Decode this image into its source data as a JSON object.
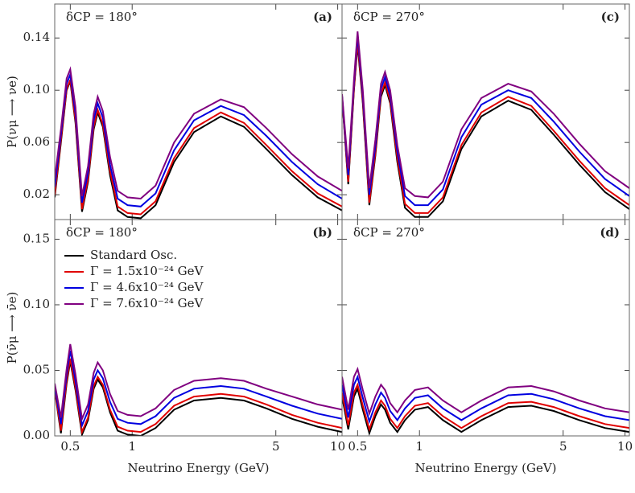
{
  "chart_data": [
    {
      "type": "line",
      "panel_label": "(a)",
      "annotation": "δCP = 180°",
      "y_label": "P(νμ ⟶ νe)",
      "xscale": "log",
      "xlim": [
        0.42,
        10.5
      ],
      "ylim": [
        0.001,
        0.166
      ],
      "xticks": [
        0.5,
        1,
        5,
        10
      ],
      "yticks": [
        0.02,
        0.06,
        {
          "value": 0.1,
          "label": "0.10"
        },
        0.14
      ],
      "x": [
        0.42,
        0.45,
        0.48,
        0.5,
        0.53,
        0.57,
        0.61,
        0.65,
        0.68,
        0.72,
        0.78,
        0.85,
        0.95,
        1.1,
        1.3,
        1.6,
        2.0,
        2.7,
        3.5,
        4.5,
        6,
        8,
        10.5
      ],
      "series": [
        {
          "color": "#000000",
          "values": [
            0.018,
            0.06,
            0.1,
            0.107,
            0.075,
            0.007,
            0.03,
            0.07,
            0.083,
            0.072,
            0.035,
            0.008,
            0.003,
            0.002,
            0.012,
            0.045,
            0.068,
            0.08,
            0.072,
            0.055,
            0.035,
            0.018,
            0.008
          ]
        },
        {
          "color": "#e00000",
          "values": [
            0.02,
            0.062,
            0.101,
            0.108,
            0.077,
            0.009,
            0.032,
            0.072,
            0.085,
            0.074,
            0.038,
            0.011,
            0.006,
            0.005,
            0.015,
            0.048,
            0.071,
            0.083,
            0.075,
            0.058,
            0.038,
            0.021,
            0.011
          ]
        },
        {
          "color": "#0000e0",
          "values": [
            0.026,
            0.066,
            0.105,
            0.112,
            0.082,
            0.014,
            0.037,
            0.077,
            0.09,
            0.079,
            0.043,
            0.017,
            0.012,
            0.011,
            0.021,
            0.054,
            0.077,
            0.088,
            0.081,
            0.065,
            0.045,
            0.028,
            0.017
          ]
        },
        {
          "color": "#800080",
          "values": [
            0.032,
            0.07,
            0.109,
            0.116,
            0.087,
            0.019,
            0.042,
            0.082,
            0.095,
            0.084,
            0.049,
            0.023,
            0.018,
            0.017,
            0.027,
            0.06,
            0.082,
            0.093,
            0.087,
            0.071,
            0.051,
            0.034,
            0.023
          ]
        }
      ]
    },
    {
      "type": "line",
      "panel_label": "(b)",
      "annotation": "δCP = 180°",
      "y_label": "P(ν̄μ ⟶ ν̄e)",
      "x_label": "Neutrino Energy (GeV)",
      "legend": "upper left",
      "xscale": "log",
      "xlim": [
        0.42,
        10.5
      ],
      "ylim": [
        0,
        0.165
      ],
      "xticks": [
        0.5,
        1,
        5,
        10
      ],
      "yticks": [
        {
          "value": 0,
          "label": "0.00"
        },
        0.05,
        {
          "value": 0.1,
          "label": "0.10"
        },
        0.15
      ],
      "x": [
        0.42,
        0.45,
        0.48,
        0.5,
        0.53,
        0.57,
        0.61,
        0.65,
        0.68,
        0.72,
        0.78,
        0.85,
        0.95,
        1.1,
        1.3,
        1.6,
        2.0,
        2.7,
        3.5,
        4.5,
        6,
        8,
        10.5
      ],
      "series": [
        {
          "name": "Standard Osc.",
          "color": "#000000",
          "values": [
            0.035,
            0.002,
            0.04,
            0.057,
            0.035,
            0.001,
            0.012,
            0.036,
            0.043,
            0.037,
            0.018,
            0.004,
            0.001,
            0.0,
            0.006,
            0.02,
            0.027,
            0.029,
            0.027,
            0.021,
            0.013,
            0.007,
            0.003
          ]
        },
        {
          "name": "Γ = 1.5x10⁻²⁴ GeV",
          "color": "#e00000",
          "values": [
            0.036,
            0.004,
            0.042,
            0.059,
            0.037,
            0.003,
            0.014,
            0.038,
            0.045,
            0.039,
            0.02,
            0.007,
            0.004,
            0.003,
            0.009,
            0.023,
            0.03,
            0.032,
            0.03,
            0.024,
            0.016,
            0.01,
            0.006
          ]
        },
        {
          "name": "Γ = 4.6x10⁻²⁴ GeV",
          "color": "#0000e0",
          "values": [
            0.038,
            0.009,
            0.047,
            0.065,
            0.042,
            0.008,
            0.019,
            0.043,
            0.05,
            0.044,
            0.026,
            0.013,
            0.01,
            0.009,
            0.015,
            0.029,
            0.036,
            0.038,
            0.036,
            0.03,
            0.023,
            0.017,
            0.013
          ]
        },
        {
          "name": "Γ = 7.6x10⁻²⁴ GeV",
          "color": "#800080",
          "values": [
            0.04,
            0.014,
            0.051,
            0.07,
            0.047,
            0.013,
            0.024,
            0.048,
            0.056,
            0.05,
            0.032,
            0.019,
            0.016,
            0.015,
            0.021,
            0.035,
            0.042,
            0.044,
            0.042,
            0.036,
            0.03,
            0.024,
            0.02
          ]
        }
      ]
    },
    {
      "type": "line",
      "panel_label": "(c)",
      "annotation": "δCP = 270°",
      "xscale": "log",
      "xlim": [
        0.42,
        10.5
      ],
      "ylim": [
        0.001,
        0.166
      ],
      "xticks": [
        0.5,
        1,
        5,
        10
      ],
      "yticks": [
        0.02,
        0.06,
        0.1,
        0.14
      ],
      "x": [
        0.42,
        0.45,
        0.48,
        0.5,
        0.53,
        0.57,
        0.61,
        0.65,
        0.68,
        0.72,
        0.78,
        0.85,
        0.95,
        1.1,
        1.3,
        1.6,
        2.0,
        2.7,
        3.5,
        4.5,
        6,
        8,
        10.5
      ],
      "series": [
        {
          "color": "#000000",
          "values": [
            0.095,
            0.028,
            0.1,
            0.135,
            0.09,
            0.012,
            0.05,
            0.095,
            0.104,
            0.09,
            0.045,
            0.01,
            0.003,
            0.003,
            0.015,
            0.055,
            0.08,
            0.092,
            0.085,
            0.066,
            0.043,
            0.022,
            0.009
          ]
        },
        {
          "color": "#e00000",
          "values": [
            0.095,
            0.03,
            0.101,
            0.137,
            0.092,
            0.014,
            0.052,
            0.097,
            0.106,
            0.092,
            0.048,
            0.013,
            0.006,
            0.006,
            0.018,
            0.058,
            0.083,
            0.095,
            0.088,
            0.069,
            0.046,
            0.025,
            0.012
          ]
        },
        {
          "color": "#0000e0",
          "values": [
            0.096,
            0.035,
            0.105,
            0.142,
            0.096,
            0.02,
            0.057,
            0.101,
            0.11,
            0.096,
            0.053,
            0.019,
            0.012,
            0.012,
            0.024,
            0.064,
            0.089,
            0.1,
            0.094,
            0.076,
            0.053,
            0.032,
            0.019
          ]
        },
        {
          "color": "#800080",
          "values": [
            0.097,
            0.04,
            0.108,
            0.145,
            0.1,
            0.025,
            0.062,
            0.105,
            0.114,
            0.1,
            0.058,
            0.025,
            0.019,
            0.018,
            0.03,
            0.07,
            0.094,
            0.105,
            0.099,
            0.082,
            0.059,
            0.038,
            0.025
          ]
        }
      ]
    },
    {
      "type": "line",
      "panel_label": "(d)",
      "annotation": "δCP = 270°",
      "x_label": "Neutrino Energy (GeV)",
      "xscale": "log",
      "xlim": [
        0.42,
        10.5
      ],
      "ylim": [
        0,
        0.165
      ],
      "xticks": [
        0.5,
        1,
        5,
        10
      ],
      "yticks": [
        0,
        0.05,
        0.1,
        0.15
      ],
      "x": [
        0.42,
        0.45,
        0.48,
        0.5,
        0.53,
        0.57,
        0.61,
        0.65,
        0.68,
        0.72,
        0.78,
        0.85,
        0.95,
        1.1,
        1.3,
        1.6,
        2.0,
        2.7,
        3.5,
        4.5,
        6,
        8,
        10.5
      ],
      "series": [
        {
          "color": "#000000",
          "values": [
            0.03,
            0.005,
            0.03,
            0.036,
            0.02,
            0.002,
            0.015,
            0.024,
            0.02,
            0.01,
            0.003,
            0.012,
            0.02,
            0.022,
            0.012,
            0.003,
            0.012,
            0.022,
            0.023,
            0.019,
            0.012,
            0.006,
            0.003
          ]
        },
        {
          "color": "#e00000",
          "values": [
            0.033,
            0.008,
            0.033,
            0.039,
            0.023,
            0.005,
            0.018,
            0.027,
            0.023,
            0.013,
            0.006,
            0.015,
            0.023,
            0.025,
            0.015,
            0.006,
            0.015,
            0.025,
            0.026,
            0.022,
            0.015,
            0.009,
            0.006
          ]
        },
        {
          "color": "#0000e0",
          "values": [
            0.039,
            0.014,
            0.039,
            0.045,
            0.029,
            0.011,
            0.024,
            0.033,
            0.029,
            0.019,
            0.012,
            0.021,
            0.029,
            0.031,
            0.021,
            0.012,
            0.021,
            0.031,
            0.032,
            0.028,
            0.021,
            0.015,
            0.012
          ]
        },
        {
          "color": "#800080",
          "values": [
            0.045,
            0.02,
            0.045,
            0.051,
            0.035,
            0.017,
            0.03,
            0.039,
            0.035,
            0.025,
            0.018,
            0.027,
            0.035,
            0.037,
            0.027,
            0.018,
            0.027,
            0.037,
            0.038,
            0.034,
            0.027,
            0.021,
            0.018
          ]
        }
      ]
    }
  ]
}
